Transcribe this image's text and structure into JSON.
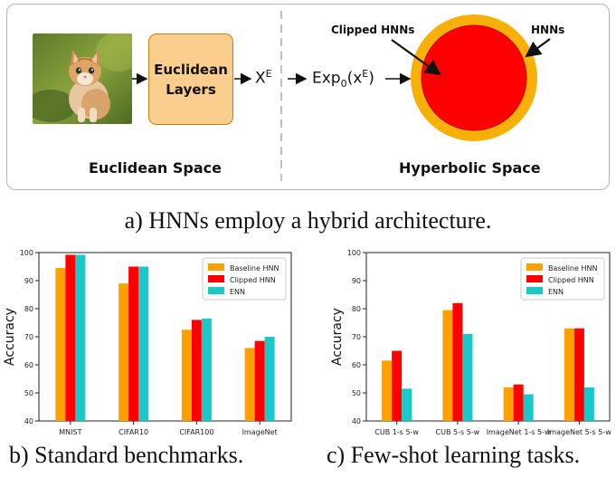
{
  "figure_a": {
    "layers_label_line1": "Euclidean",
    "layers_label_line2": "Layers",
    "xe_base": "X",
    "xe_sup": "E",
    "exp_label": "Exp",
    "exp_sub": "0",
    "exp_arg_open": "(x",
    "exp_arg_sup": "E",
    "exp_arg_close": ")",
    "euclidean_space": "Euclidean Space",
    "hyperbolic_space": "Hyperbolic Space",
    "clipped_hnns": "Clipped HNNs",
    "hnns": "HNNs",
    "caption": "a) HNNs employ a hybrid architecture.",
    "colors": {
      "outer_ring": "#f7b008",
      "inner_disk": "#ff0000"
    }
  },
  "caption_b": "b) Standard benchmarks.",
  "caption_c": "c) Few-shot learning tasks.",
  "chart_data": [
    {
      "type": "bar",
      "categories": [
        "MNIST",
        "CIFAR10",
        "CIFAR100",
        "ImageNet"
      ],
      "series": [
        {
          "name": "Baseline HNN",
          "values": [
            94.5,
            89,
            72.5,
            66
          ],
          "color": "#ff9f00"
        },
        {
          "name": "Clipped HNN",
          "values": [
            99.2,
            95,
            76,
            68.5
          ],
          "color": "#ff0000"
        },
        {
          "name": "ENN",
          "values": [
            99.2,
            95,
            76.5,
            70
          ],
          "color": "#19c8c8"
        }
      ],
      "ylabel": "Accuracy",
      "ylim": [
        40,
        100
      ],
      "yticks": [
        40,
        50,
        60,
        70,
        80,
        90,
        100
      ],
      "legend": "top-right",
      "grid": false
    },
    {
      "type": "bar",
      "categories": [
        "CUB 1-s 5-w",
        "CUB 5-s 5-w",
        "ImageNet 1-s 5-w",
        "ImageNet 5-s 5-w"
      ],
      "series": [
        {
          "name": "Baseline HNN",
          "values": [
            61.5,
            79.5,
            52,
            73
          ],
          "color": "#ff9f00"
        },
        {
          "name": "Clipped HNN",
          "values": [
            65,
            82,
            53,
            73
          ],
          "color": "#ff0000"
        },
        {
          "name": "ENN",
          "values": [
            51.5,
            71,
            49.5,
            52
          ],
          "color": "#19c8c8"
        }
      ],
      "ylabel": "Accuracy",
      "ylim": [
        40,
        100
      ],
      "yticks": [
        40,
        50,
        60,
        70,
        80,
        90,
        100
      ],
      "legend": "top-right",
      "grid": false
    }
  ]
}
